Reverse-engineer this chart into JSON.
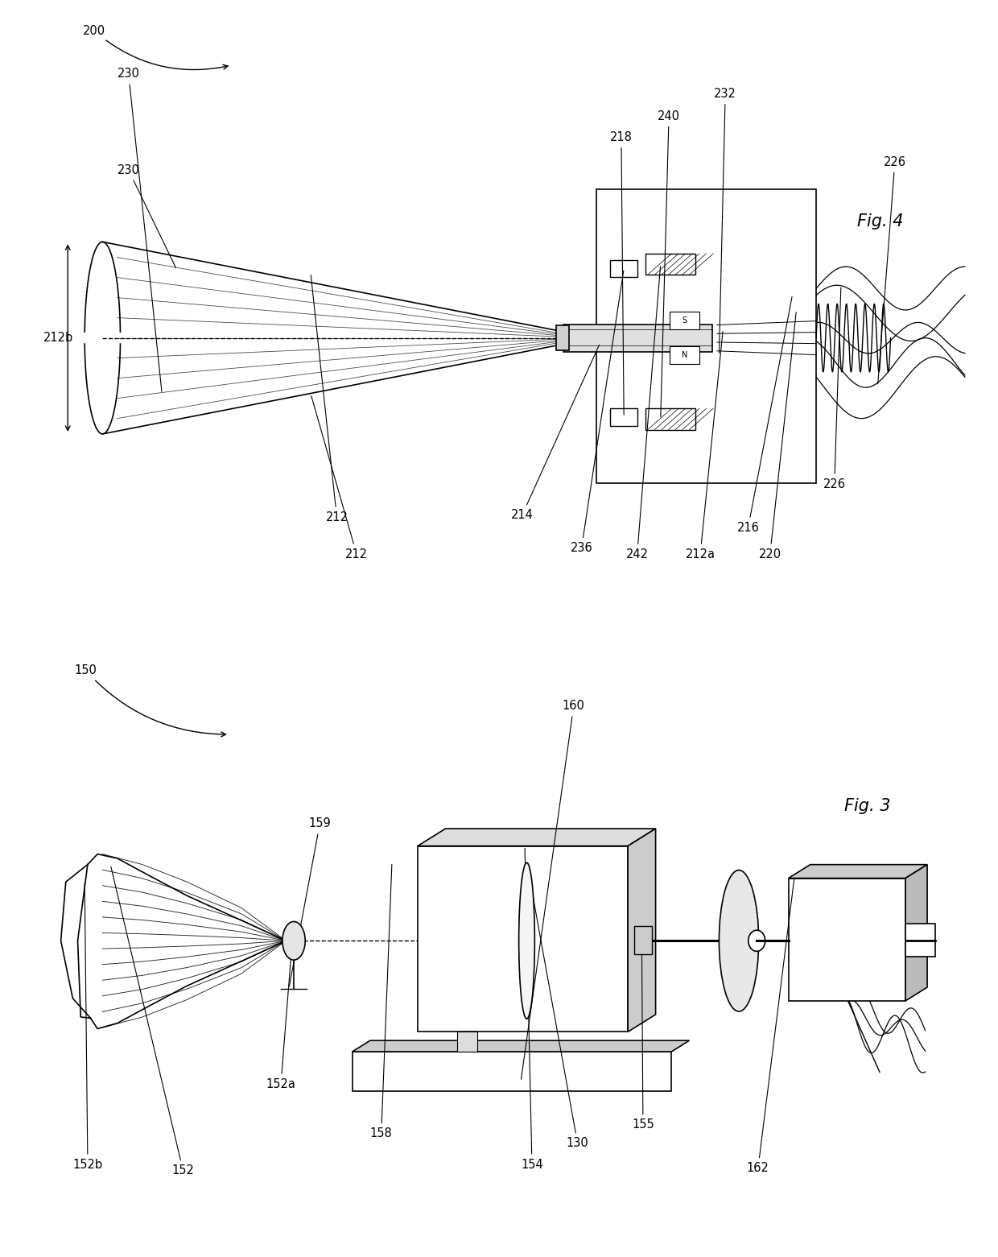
{
  "bg_color": "#ffffff",
  "line_color": "#000000",
  "gray1": "#dddddd",
  "gray2": "#cccccc",
  "gray3": "#e0e0e0",
  "gray4": "#bbbbbb",
  "gray5": "#e8e8e8",
  "gray6": "#aaaaaa",
  "gray7": "#d0d0d0",
  "fig4_label": "Fig. 4",
  "fig3_label": "Fig. 3",
  "fig4_ref": "200",
  "fig3_ref": "150"
}
